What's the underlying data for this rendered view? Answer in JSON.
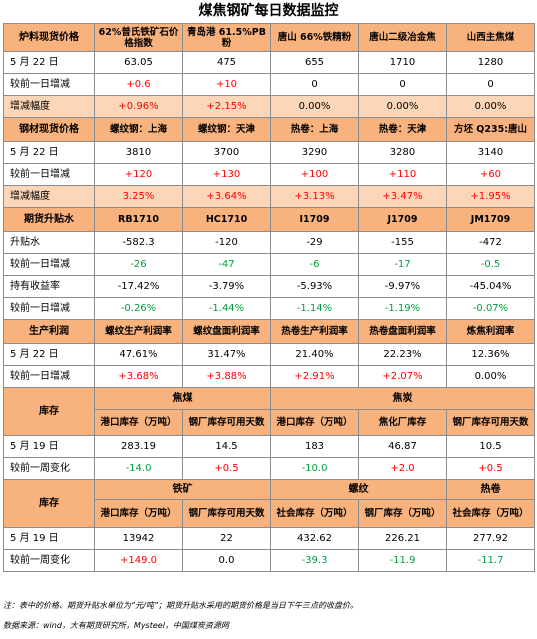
{
  "title": "煤焦钢矿每日数据监控",
  "s1": {
    "header": [
      "炉料现货价格",
      "62%普氏铁矿石价格指数",
      "青岛港 61.5%PB粉",
      "唐山 66%铁精粉",
      "唐山二级冶金焦",
      "山西主焦煤"
    ],
    "rows": [
      {
        "label": "5 月 22 日",
        "cells": [
          [
            "63.05",
            "blk"
          ],
          [
            "475",
            "blk"
          ],
          [
            "655",
            "blk"
          ],
          [
            "1710",
            "blk"
          ],
          [
            "1280",
            "blk"
          ]
        ]
      },
      {
        "label": "较前一日增减",
        "cells": [
          [
            "+0.6",
            "pos"
          ],
          [
            "+10",
            "pos"
          ],
          [
            "0",
            "blk"
          ],
          [
            "0",
            "blk"
          ],
          [
            "0",
            "blk"
          ]
        ]
      },
      {
        "label": "增减幅度",
        "cells": [
          [
            "+0.96%",
            "pos"
          ],
          [
            "+2.15%",
            "pos"
          ],
          [
            "0.00%",
            "blk"
          ],
          [
            "0.00%",
            "blk"
          ],
          [
            "0.00%",
            "blk"
          ]
        ]
      }
    ]
  },
  "s2": {
    "header": [
      "钢材现货价格",
      "螺纹钢：上海",
      "螺纹钢：天津",
      "热卷：上海",
      "热卷：天津",
      "方坯 Q235:唐山"
    ],
    "rows": [
      {
        "label": "5 月 22 日",
        "cells": [
          [
            "3810",
            "blk"
          ],
          [
            "3700",
            "blk"
          ],
          [
            "3290",
            "blk"
          ],
          [
            "3280",
            "blk"
          ],
          [
            "3140",
            "blk"
          ]
        ]
      },
      {
        "label": "较前一日增减",
        "cells": [
          [
            "+120",
            "pos"
          ],
          [
            "+130",
            "pos"
          ],
          [
            "+100",
            "pos"
          ],
          [
            "+110",
            "pos"
          ],
          [
            "+60",
            "pos"
          ]
        ]
      },
      {
        "label": "增减幅度",
        "cells": [
          [
            "3.25%",
            "pos"
          ],
          [
            "+3.64%",
            "pos"
          ],
          [
            "+3.13%",
            "pos"
          ],
          [
            "+3.47%",
            "pos"
          ],
          [
            "+1.95%",
            "pos"
          ]
        ]
      }
    ]
  },
  "s3": {
    "header": [
      "期货升贴水",
      "RB1710",
      "HC1710",
      "I1709",
      "J1709",
      "JM1709"
    ],
    "rows": [
      {
        "label": "升贴水",
        "cells": [
          [
            "-582.3",
            "blk"
          ],
          [
            "-120",
            "blk"
          ],
          [
            "-29",
            "blk"
          ],
          [
            "-155",
            "blk"
          ],
          [
            "-472",
            "blk"
          ]
        ]
      },
      {
        "label": "较前一日增减",
        "cells": [
          [
            "-26",
            "neg"
          ],
          [
            "-47",
            "neg"
          ],
          [
            "-6",
            "neg"
          ],
          [
            "-17",
            "neg"
          ],
          [
            "-0.5",
            "neg"
          ]
        ]
      },
      {
        "label": "持有收益率",
        "cells": [
          [
            "-17.42%",
            "blk"
          ],
          [
            "-3.79%",
            "blk"
          ],
          [
            "-5.93%",
            "blk"
          ],
          [
            "-9.97%",
            "blk"
          ],
          [
            "-45.04%",
            "blk"
          ]
        ]
      },
      {
        "label": "较前一日增减",
        "cells": [
          [
            "-0.26%",
            "neg"
          ],
          [
            "-1.44%",
            "neg"
          ],
          [
            "-1.14%",
            "neg"
          ],
          [
            "-1.19%",
            "neg"
          ],
          [
            "-0.07%",
            "neg"
          ]
        ]
      }
    ]
  },
  "s4": {
    "header": [
      "生产利润",
      "螺纹生产利润率",
      "螺纹盘面利润率",
      "热卷生产利润率",
      "热卷盘面利润率",
      "炼焦利润率"
    ],
    "rows": [
      {
        "label": "5 月 22 日",
        "cells": [
          [
            "47.61%",
            "blk"
          ],
          [
            "31.47%",
            "blk"
          ],
          [
            "21.40%",
            "blk"
          ],
          [
            "22.23%",
            "blk"
          ],
          [
            "12.36%",
            "blk"
          ]
        ]
      },
      {
        "label": "较前一日增减",
        "cells": [
          [
            "+3.68%",
            "pos"
          ],
          [
            "+3.88%",
            "pos"
          ],
          [
            "+2.91%",
            "pos"
          ],
          [
            "+2.07%",
            "pos"
          ],
          [
            "0.00%",
            "blk"
          ]
        ]
      }
    ]
  },
  "s5": {
    "label": "库存",
    "group1": "焦煤",
    "group2": "焦炭",
    "header": [
      "港口库存（万吨）",
      "钢厂库存可用天数",
      "港口库存（万吨）",
      "焦化厂库存",
      "钢厂库存可用天数"
    ],
    "rows": [
      {
        "label": "5 月 19 日",
        "cells": [
          [
            "283.19",
            "blk"
          ],
          [
            "14.5",
            "blk"
          ],
          [
            "183",
            "blk"
          ],
          [
            "46.87",
            "blk"
          ],
          [
            "10.5",
            "blk"
          ]
        ]
      },
      {
        "label": "较前一周变化",
        "cells": [
          [
            "-14.0",
            "neg"
          ],
          [
            "+0.5",
            "pos"
          ],
          [
            "-10.0",
            "neg"
          ],
          [
            "+2.0",
            "pos"
          ],
          [
            "+0.5",
            "pos"
          ]
        ]
      }
    ]
  },
  "s6": {
    "label": "库存",
    "group1": "铁矿",
    "group2": "螺纹",
    "group3": "热卷",
    "header": [
      "港口库存（万吨）",
      "钢厂库存可用天数",
      "社会库存（万吨）",
      "钢厂库存（万吨）",
      "社会库存（万吨）"
    ],
    "rows": [
      {
        "label": "5 月 19 日",
        "cells": [
          [
            "13942",
            "blk"
          ],
          [
            "22",
            "blk"
          ],
          [
            "432.62",
            "blk"
          ],
          [
            "226.21",
            "blk"
          ],
          [
            "277.92",
            "blk"
          ]
        ]
      },
      {
        "label": "较前一周变化",
        "cells": [
          [
            "+149.0",
            "pos"
          ],
          [
            "0.0",
            "blk"
          ],
          [
            "-39.3",
            "neg"
          ],
          [
            "-11.9",
            "neg"
          ],
          [
            "-11.7",
            "neg"
          ]
        ]
      }
    ]
  },
  "notes": {
    "line1": "注：表中的价格、期货升贴水单位为“元/吨”；期货升贴水采用的期货价格是当日下午三点的收盘价。",
    "line2": "数据来源：wind，大有期货研究所，Mysteel，中国煤炭资源网"
  }
}
